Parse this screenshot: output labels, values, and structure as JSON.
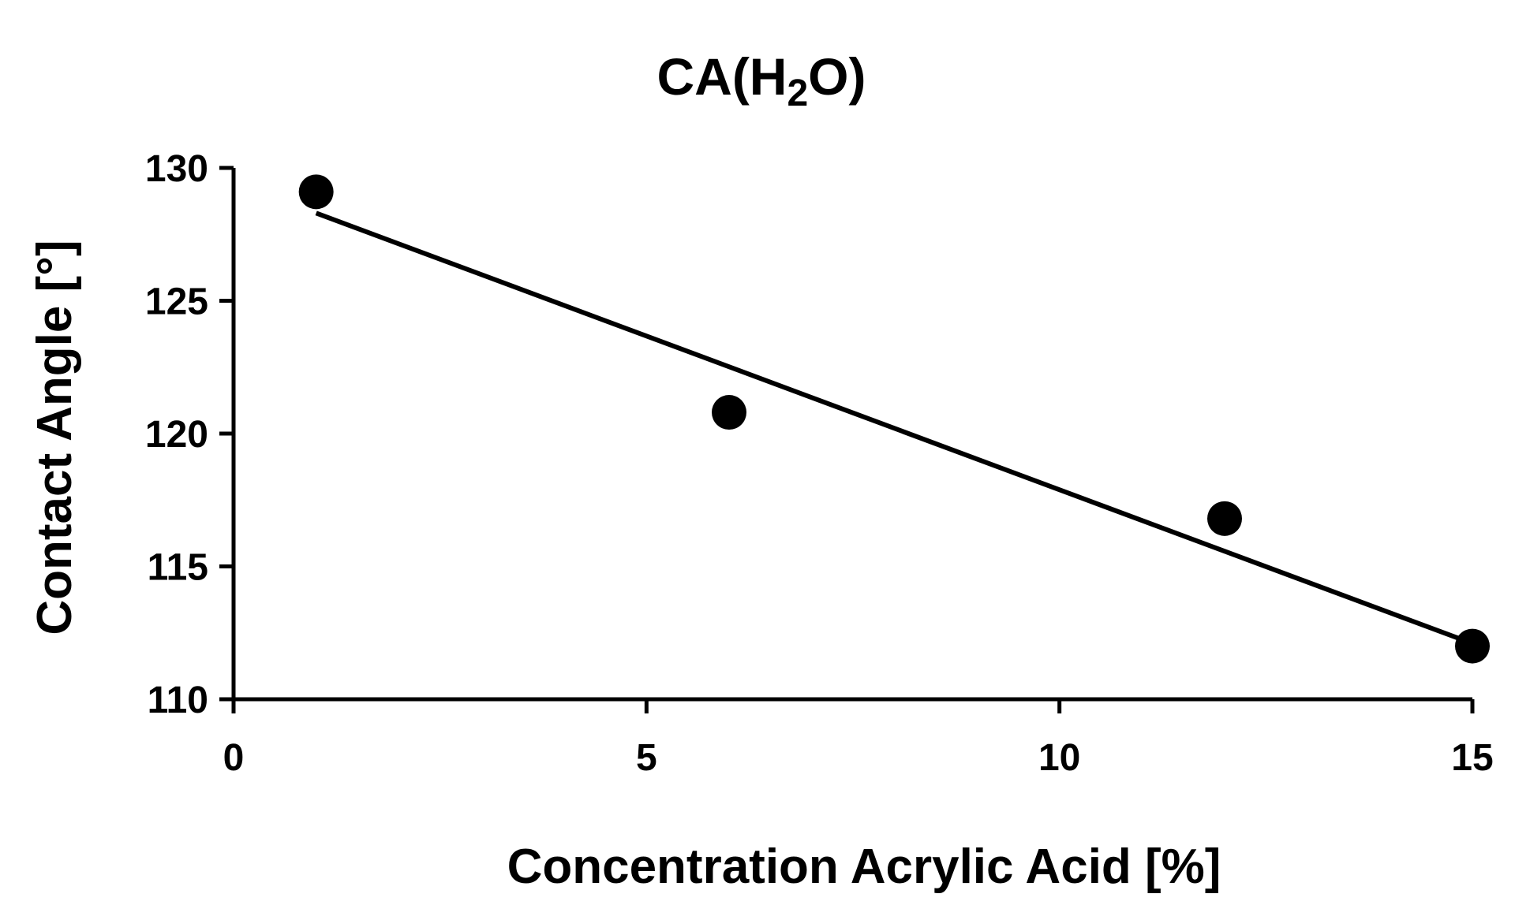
{
  "chart_data": {
    "type": "scatter",
    "title": {
      "prefix": "CA(H",
      "subscript": "2",
      "suffix": "O)"
    },
    "xlabel": "Concentration Acrylic Acid [%]",
    "ylabel": "Contact Angle [°]",
    "xlim": [
      0,
      15
    ],
    "ylim": [
      110,
      130
    ],
    "x_ticks": [
      0,
      5,
      10,
      15
    ],
    "y_ticks": [
      110,
      115,
      120,
      125,
      130
    ],
    "grid": false,
    "series": [
      {
        "x": [
          1,
          6,
          12,
          15
        ],
        "y": [
          129.1,
          120.8,
          116.8,
          112.0
        ],
        "color": "#000000",
        "marker": "circle"
      }
    ],
    "trendline": {
      "type": "linear",
      "x_start": 1,
      "x_end": 15,
      "y_start": 128.3,
      "y_end": 112.1,
      "color": "#000000"
    }
  }
}
